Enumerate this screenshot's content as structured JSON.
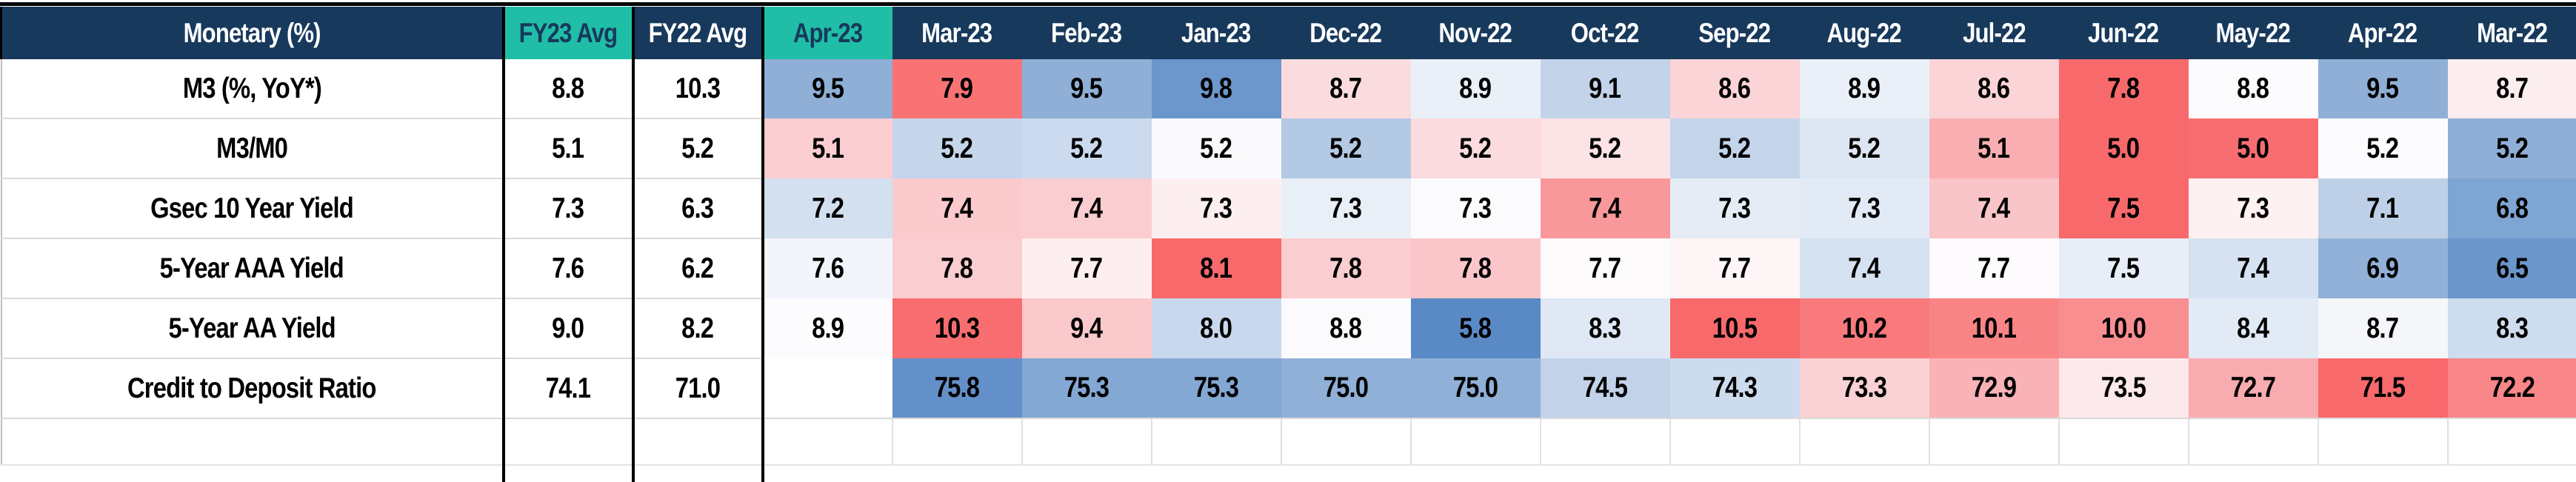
{
  "table": {
    "corner_label": "Monetary (%)",
    "avg_columns": [
      "FY23 Avg",
      "FY22 Avg"
    ],
    "month_columns": [
      "Apr-23",
      "Mar-23",
      "Feb-23",
      "Jan-23",
      "Dec-22",
      "Nov-22",
      "Oct-22",
      "Sep-22",
      "Aug-22",
      "Jul-22",
      "Jun-22",
      "May-22",
      "Apr-22",
      "Mar-22"
    ],
    "highlighted_columns": [
      "FY23 Avg",
      "Apr-23"
    ],
    "rows": [
      {
        "label": "M3 (%, YoY*)",
        "fy23_avg": "8.8",
        "fy22_avg": "10.3",
        "values": [
          "9.5",
          "7.9",
          "9.5",
          "9.8",
          "8.7",
          "8.9",
          "9.1",
          "8.6",
          "8.9",
          "8.6",
          "7.8",
          "8.8",
          "9.5",
          "8.7"
        ],
        "cell_colors": [
          "#8FAFD7",
          "#F97375",
          "#8FAFD7",
          "#6C97CD",
          "#FBDCDE",
          "#EAF0F8",
          "#C2D3EA",
          "#FAD4D7",
          "#EAF0F8",
          "#FAD4D7",
          "#F8696B",
          "#FCFCFF",
          "#8FAFD7",
          "#FCEDEF"
        ]
      },
      {
        "label": "M3/M0",
        "fy23_avg": "5.1",
        "fy22_avg": "5.2",
        "values": [
          "5.1",
          "5.2",
          "5.2",
          "5.2",
          "5.2",
          "5.2",
          "5.2",
          "5.2",
          "5.2",
          "5.1",
          "5.0",
          "5.0",
          "5.2",
          "5.2"
        ],
        "cell_colors": [
          "#FACDD0",
          "#C5D6EB",
          "#CBDAEE",
          "#FAFAFD",
          "#B3C9E4",
          "#FBDBDE",
          "#FCE3E5",
          "#C4D5EB",
          "#DDE7F3",
          "#F9AFB2",
          "#F8696B",
          "#F86E70",
          "#FCFCFF",
          "#8FAFD7"
        ]
      },
      {
        "label": "Gsec 10 Year Yield",
        "fy23_avg": "7.3",
        "fy22_avg": "6.3",
        "values": [
          "7.2",
          "7.4",
          "7.4",
          "7.3",
          "7.3",
          "7.3",
          "7.4",
          "7.3",
          "7.3",
          "7.4",
          "7.5",
          "7.3",
          "7.1",
          "6.8"
        ],
        "cell_colors": [
          "#D3E0F0",
          "#FACACD",
          "#FACDD0",
          "#FDEFF0",
          "#E9EFF7",
          "#FBFBFE",
          "#F9989A",
          "#E5ECF6",
          "#E2EAF5",
          "#FAC5C8",
          "#F8696B",
          "#FDF1F2",
          "#BDD0E7",
          "#7FA5D2"
        ]
      },
      {
        "label": "5-Year AAA Yield",
        "fy23_avg": "7.6",
        "fy22_avg": "6.2",
        "values": [
          "7.6",
          "7.8",
          "7.7",
          "8.1",
          "7.8",
          "7.8",
          "7.7",
          "7.7",
          "7.4",
          "7.7",
          "7.5",
          "7.4",
          "6.9",
          "6.5"
        ],
        "cell_colors": [
          "#F2F5FB",
          "#FACDD0",
          "#FDEFF0",
          "#F8696B",
          "#FACDD0",
          "#FAC6C9",
          "#FDFAFC",
          "#FDF5F6",
          "#D4E1F0",
          "#FDFBFD",
          "#E7EEF7",
          "#D6E2F1",
          "#92B1D8",
          "#6B96CC"
        ]
      },
      {
        "label": "5-Year AA Yield",
        "fy23_avg": "9.0",
        "fy22_avg": "8.2",
        "values": [
          "8.9",
          "10.3",
          "9.4",
          "8.0",
          "8.8",
          "5.8",
          "8.3",
          "10.5",
          "10.2",
          "10.1",
          "10.0",
          "8.4",
          "8.7",
          "8.3"
        ],
        "cell_colors": [
          "#FCFBFE",
          "#F86D6F",
          "#FAC9CC",
          "#C9D9ED",
          "#FBFBFE",
          "#5A8AC6",
          "#DFE8F4",
          "#F8696B",
          "#F87A7C",
          "#F98486",
          "#F98E90",
          "#E1EAF5",
          "#F4F6FA",
          "#CEDCEF"
        ]
      },
      {
        "label": "Credit to Deposit Ratio",
        "fy23_avg": "74.1",
        "fy22_avg": "71.0",
        "values": [
          "",
          "75.8",
          "75.3",
          "75.3",
          "75.0",
          "75.0",
          "74.5",
          "74.3",
          "73.3",
          "72.9",
          "73.5",
          "72.7",
          "71.5",
          "72.2"
        ],
        "cell_colors": [
          "#FFFFFF",
          "#6490CA",
          "#84A8D4",
          "#84A8D4",
          "#90B0D7",
          "#90B0D7",
          "#C2D3E9",
          "#CDDBEE",
          "#FAD2D5",
          "#F9B3B6",
          "#FCE9EB",
          "#F9ACAF",
          "#F8696B",
          "#F98688"
        ]
      }
    ]
  },
  "colors": {
    "header_bg": "#17395C",
    "header_text": "#FFFFFF",
    "highlight_bg": "#20BEA7",
    "highlight_text": "#17395C",
    "heatmap_low": "#F8696B",
    "heatmap_mid": "#FCFCFF",
    "heatmap_high": "#5A8AC6",
    "grid_line": "#D9D9D9",
    "black_border": "#000000"
  }
}
